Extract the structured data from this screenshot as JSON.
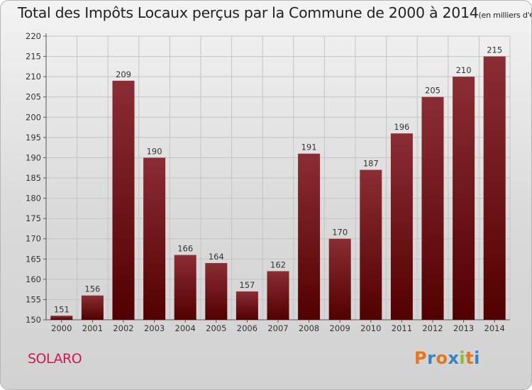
{
  "title": "Total des Impôts Locaux perçus par la Commune de 2000 à 2014",
  "title_unit": "(en milliers d'€)",
  "commune": "SOLARO",
  "brand": "Proxiti",
  "colors": {
    "bar_top": "#8b2d34",
    "bar_bottom": "#520000",
    "commune": "#d0194a"
  },
  "chart_data": {
    "type": "bar",
    "title": "Total des Impôts Locaux perçus par la Commune de 2000 à 2014",
    "xlabel": "",
    "ylabel": "en milliers d'€",
    "categories": [
      "2000",
      "2001",
      "2002",
      "2003",
      "2004",
      "2005",
      "2006",
      "2007",
      "2008",
      "2009",
      "2010",
      "2011",
      "2012",
      "2013",
      "2014"
    ],
    "values": [
      151,
      156,
      209,
      190,
      166,
      164,
      157,
      162,
      191,
      170,
      187,
      196,
      205,
      210,
      215
    ],
    "ylim": [
      150,
      220
    ],
    "ytick_step": 5,
    "grid": true,
    "data_labels": true
  }
}
